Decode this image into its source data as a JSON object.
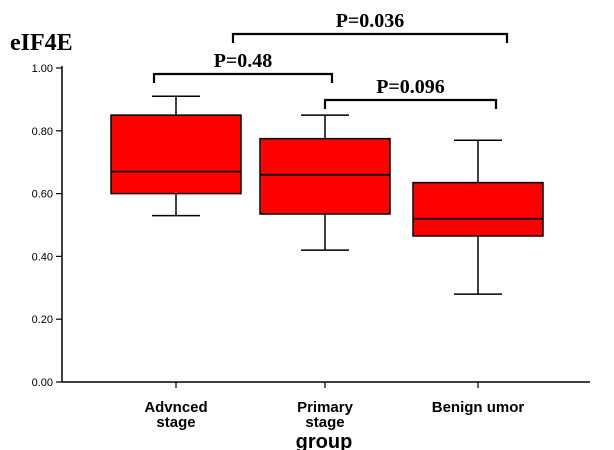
{
  "chart_data": {
    "type": "box",
    "title": "eIF4E",
    "xlabel": "group",
    "ylabel": "",
    "ylim": [
      0.0,
      1.0
    ],
    "yticks": [
      "0.00",
      "0.20",
      "0.40",
      "0.60",
      "0.80",
      "1.00"
    ],
    "grid": false,
    "box_color": "#ff0000",
    "categories": [
      {
        "lines": [
          "Advnced",
          "stage"
        ]
      },
      {
        "lines": [
          "Primary",
          "stage"
        ]
      },
      {
        "lines": [
          "Benign umor"
        ]
      }
    ],
    "boxes": [
      {
        "whisker_low": 0.53,
        "q1": 0.6,
        "median": 0.67,
        "q3": 0.85,
        "whisker_high": 0.91
      },
      {
        "whisker_low": 0.42,
        "q1": 0.535,
        "median": 0.66,
        "q3": 0.775,
        "whisker_high": 0.85
      },
      {
        "whisker_low": 0.28,
        "q1": 0.465,
        "median": 0.52,
        "q3": 0.635,
        "whisker_high": 0.77
      }
    ],
    "comparisons": [
      {
        "from": 0,
        "to": 2,
        "label": "P=0.036",
        "level": 3
      },
      {
        "from": 0,
        "to": 1,
        "label": "P=0.48",
        "level": 1
      },
      {
        "from": 1,
        "to": 2,
        "label": "P=0.096",
        "level": 2
      }
    ]
  }
}
